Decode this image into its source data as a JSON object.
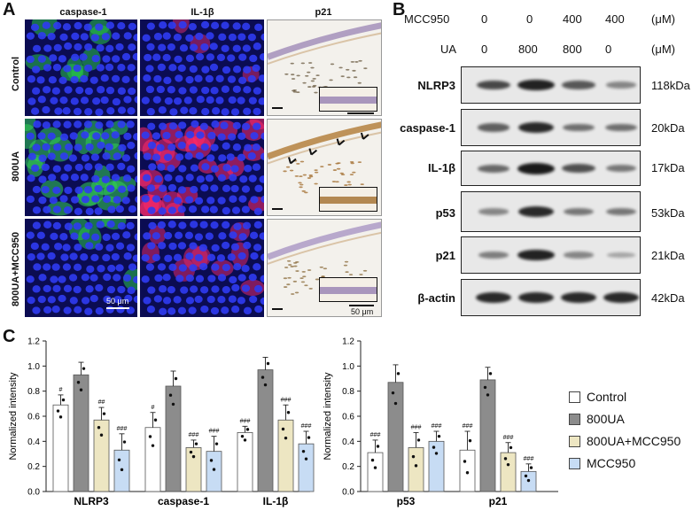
{
  "panel_letters": {
    "a": "A",
    "b": "B",
    "c": "C"
  },
  "panel_a": {
    "columns": [
      "caspase-1",
      "IL-1β",
      "p21"
    ],
    "rows": [
      "Control",
      "800UA",
      "800UA+MCC950"
    ],
    "scale_label_fluo": "50 μm",
    "scale_label_ihc": "50 μm"
  },
  "panel_b": {
    "mcc950_label": "MCC950",
    "mcc950_values": [
      "0",
      "0",
      "400",
      "400"
    ],
    "mcc950_unit": "(μM)",
    "ua_label": "UA",
    "ua_values": [
      "0",
      "800",
      "800",
      "0"
    ],
    "ua_unit": "(μM)",
    "proteins": [
      {
        "name": "NLRP3",
        "size": "118kDa",
        "intensity": [
          0.7,
          0.95,
          0.6,
          0.3
        ]
      },
      {
        "name": "caspase-1",
        "size": "20kDa",
        "intensity": [
          0.55,
          0.9,
          0.45,
          0.45
        ]
      },
      {
        "name": "IL-1β",
        "size": "17kDa",
        "intensity": [
          0.5,
          1.0,
          0.65,
          0.4
        ]
      },
      {
        "name": "p53",
        "size": "53kDa",
        "intensity": [
          0.3,
          0.9,
          0.4,
          0.4
        ]
      },
      {
        "name": "p21",
        "size": "21kDa",
        "intensity": [
          0.35,
          0.95,
          0.3,
          0.1
        ]
      },
      {
        "name": "β-actin",
        "size": "42kDa",
        "intensity": [
          0.9,
          0.9,
          0.9,
          0.9
        ]
      }
    ]
  },
  "chart_data": [
    {
      "type": "bar",
      "ylabel": "Normalized intensity",
      "ylim": [
        0,
        1.2
      ],
      "yticks": [
        "0.0",
        "0.2",
        "0.4",
        "0.6",
        "0.8",
        "1.0",
        "1.2"
      ],
      "categories": [
        "NLRP3",
        "caspase-1",
        "IL-1β"
      ],
      "series": [
        {
          "name": "Control",
          "values": [
            0.69,
            0.51,
            0.47
          ],
          "errors": [
            0.08,
            0.12,
            0.05
          ],
          "marks": [
            "#",
            "#",
            "###"
          ]
        },
        {
          "name": "800UA",
          "values": [
            0.93,
            0.84,
            0.97
          ],
          "errors": [
            0.1,
            0.12,
            0.1
          ],
          "marks": [
            "",
            "",
            ""
          ]
        },
        {
          "name": "800UA+MCC950",
          "values": [
            0.57,
            0.35,
            0.57
          ],
          "errors": [
            0.1,
            0.06,
            0.12
          ],
          "marks": [
            "##",
            "###",
            "###"
          ]
        },
        {
          "name": "MCC950",
          "values": [
            0.33,
            0.32,
            0.38
          ],
          "errors": [
            0.13,
            0.12,
            0.1
          ],
          "marks": [
            "###",
            "###",
            "###"
          ]
        }
      ]
    },
    {
      "type": "bar",
      "ylabel": "Normalized intensity",
      "ylim": [
        0,
        1.2
      ],
      "yticks": [
        "0.0",
        "0.2",
        "0.4",
        "0.6",
        "0.8",
        "1.0",
        "1.2"
      ],
      "categories": [
        "p53",
        "p21"
      ],
      "series": [
        {
          "name": "Control",
          "values": [
            0.31,
            0.33
          ],
          "errors": [
            0.1,
            0.15
          ],
          "marks": [
            "###",
            "###"
          ]
        },
        {
          "name": "800UA",
          "values": [
            0.87,
            0.89
          ],
          "errors": [
            0.14,
            0.1
          ],
          "marks": [
            "",
            ""
          ]
        },
        {
          "name": "800UA+MCC950",
          "values": [
            0.35,
            0.31
          ],
          "errors": [
            0.12,
            0.08
          ],
          "marks": [
            "###",
            "###"
          ]
        },
        {
          "name": "MCC950",
          "values": [
            0.4,
            0.16
          ],
          "errors": [
            0.08,
            0.06
          ],
          "marks": [
            "###",
            "###"
          ]
        }
      ]
    }
  ],
  "legend": [
    {
      "label": "Control",
      "color": "#ffffff"
    },
    {
      "label": "800UA",
      "color": "#8c8c8c"
    },
    {
      "label": "800UA+MCC950",
      "color": "#ede6c2"
    },
    {
      "label": "MCC950",
      "color": "#c7dcf4"
    }
  ]
}
